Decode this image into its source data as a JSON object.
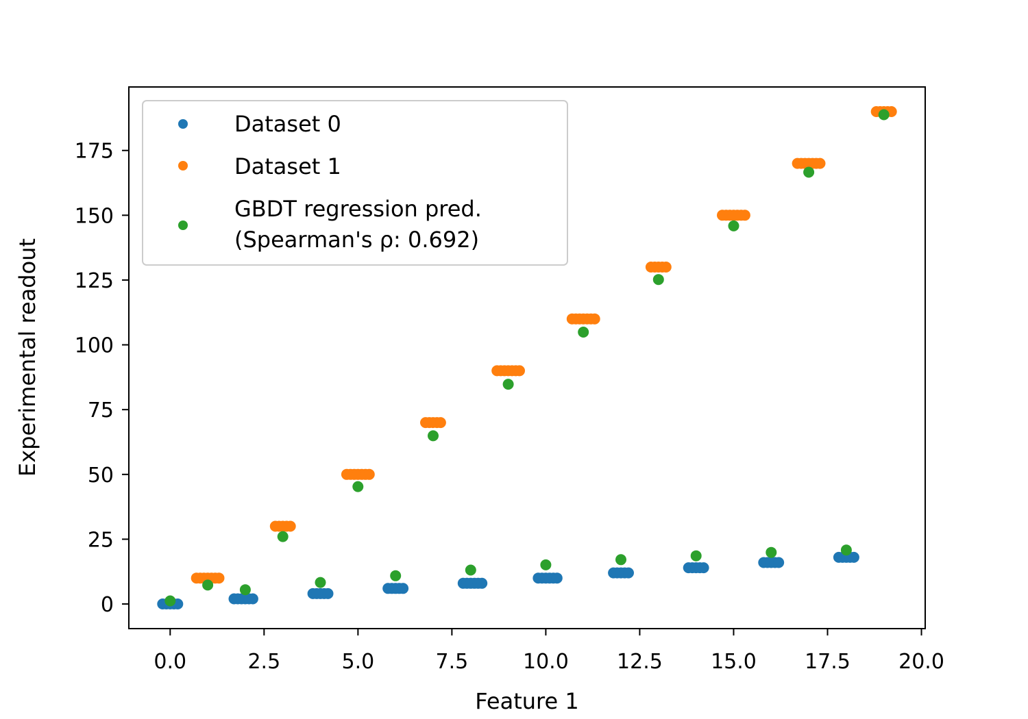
{
  "chart_data": {
    "type": "scatter",
    "title": "",
    "xlabel": "Feature 1",
    "ylabel": "Experimental readout",
    "xlim": [
      -1.1,
      20.1
    ],
    "ylim": [
      -9.5,
      199.5
    ],
    "x_ticks": [
      "0.0",
      "2.5",
      "5.0",
      "7.5",
      "10.0",
      "12.5",
      "15.0",
      "17.5",
      "20.0"
    ],
    "y_ticks": [
      "0",
      "25",
      "50",
      "75",
      "100",
      "125",
      "150",
      "175"
    ],
    "grid": false,
    "legend_position": "top-left",
    "series": [
      {
        "name": "Dataset 0",
        "color": "#1f77b4",
        "points": [
          [
            -0.2,
            0
          ],
          [
            -0.1,
            0
          ],
          [
            0.0,
            0
          ],
          [
            0.1,
            0
          ],
          [
            0.2,
            0
          ],
          [
            1.7,
            2
          ],
          [
            1.8,
            2
          ],
          [
            1.9,
            2
          ],
          [
            2.0,
            2
          ],
          [
            2.1,
            2
          ],
          [
            2.2,
            2
          ],
          [
            3.8,
            4
          ],
          [
            3.9,
            4
          ],
          [
            4.0,
            4
          ],
          [
            4.1,
            4
          ],
          [
            4.2,
            4
          ],
          [
            5.8,
            6
          ],
          [
            5.9,
            6
          ],
          [
            6.0,
            6
          ],
          [
            6.1,
            6
          ],
          [
            6.2,
            6
          ],
          [
            7.8,
            8
          ],
          [
            7.9,
            8
          ],
          [
            8.0,
            8
          ],
          [
            8.1,
            8
          ],
          [
            8.2,
            8
          ],
          [
            8.3,
            8
          ],
          [
            9.8,
            10
          ],
          [
            9.9,
            10
          ],
          [
            10.0,
            10
          ],
          [
            10.1,
            10
          ],
          [
            10.2,
            10
          ],
          [
            10.3,
            10
          ],
          [
            11.8,
            12
          ],
          [
            11.9,
            12
          ],
          [
            12.0,
            12
          ],
          [
            12.1,
            12
          ],
          [
            12.2,
            12
          ],
          [
            13.8,
            14
          ],
          [
            13.9,
            14
          ],
          [
            14.0,
            14
          ],
          [
            14.1,
            14
          ],
          [
            14.2,
            14
          ],
          [
            15.8,
            16
          ],
          [
            15.9,
            16
          ],
          [
            16.0,
            16
          ],
          [
            16.1,
            16
          ],
          [
            16.2,
            16
          ],
          [
            17.8,
            18
          ],
          [
            17.9,
            18
          ],
          [
            18.0,
            18
          ],
          [
            18.1,
            18
          ],
          [
            18.2,
            18
          ]
        ]
      },
      {
        "name": "Dataset 1",
        "color": "#ff7f0e",
        "points": [
          [
            0.7,
            10
          ],
          [
            0.8,
            10
          ],
          [
            0.9,
            10
          ],
          [
            1.0,
            10
          ],
          [
            1.1,
            10
          ],
          [
            1.2,
            10
          ],
          [
            1.3,
            10
          ],
          [
            2.8,
            30
          ],
          [
            2.9,
            30
          ],
          [
            3.0,
            30
          ],
          [
            3.1,
            30
          ],
          [
            3.2,
            30
          ],
          [
            4.7,
            50
          ],
          [
            4.8,
            50
          ],
          [
            4.9,
            50
          ],
          [
            5.0,
            50
          ],
          [
            5.1,
            50
          ],
          [
            5.2,
            50
          ],
          [
            5.3,
            50
          ],
          [
            6.8,
            70
          ],
          [
            6.9,
            70
          ],
          [
            7.0,
            70
          ],
          [
            7.1,
            70
          ],
          [
            7.2,
            70
          ],
          [
            8.7,
            90
          ],
          [
            8.8,
            90
          ],
          [
            8.9,
            90
          ],
          [
            9.0,
            90
          ],
          [
            9.1,
            90
          ],
          [
            9.2,
            90
          ],
          [
            9.3,
            90
          ],
          [
            10.7,
            110
          ],
          [
            10.8,
            110
          ],
          [
            10.9,
            110
          ],
          [
            11.0,
            110
          ],
          [
            11.1,
            110
          ],
          [
            11.2,
            110
          ],
          [
            11.3,
            110
          ],
          [
            12.8,
            130
          ],
          [
            12.9,
            130
          ],
          [
            13.0,
            130
          ],
          [
            13.1,
            130
          ],
          [
            13.2,
            130
          ],
          [
            14.7,
            150
          ],
          [
            14.8,
            150
          ],
          [
            14.9,
            150
          ],
          [
            15.0,
            150
          ],
          [
            15.1,
            150
          ],
          [
            15.2,
            150
          ],
          [
            15.3,
            150
          ],
          [
            16.7,
            170
          ],
          [
            16.8,
            170
          ],
          [
            16.9,
            170
          ],
          [
            17.0,
            170
          ],
          [
            17.1,
            170
          ],
          [
            17.2,
            170
          ],
          [
            17.3,
            170
          ],
          [
            18.8,
            190
          ],
          [
            18.9,
            190
          ],
          [
            19.0,
            190
          ],
          [
            19.1,
            190
          ],
          [
            19.2,
            190
          ]
        ]
      },
      {
        "name": "GBDT regression pred.\n(Spearman's ρ: 0.692)",
        "color": "#2ca02c",
        "points": [
          [
            0,
            1.2
          ],
          [
            1,
            7.3
          ],
          [
            2,
            5.5
          ],
          [
            3,
            26
          ],
          [
            4,
            8.3
          ],
          [
            5,
            45.3
          ],
          [
            6,
            10.9
          ],
          [
            7,
            64.9
          ],
          [
            8,
            13.1
          ],
          [
            9,
            84.8
          ],
          [
            10,
            15.1
          ],
          [
            11,
            104.9
          ],
          [
            12,
            17.1
          ],
          [
            13,
            125.2
          ],
          [
            14,
            18.6
          ],
          [
            15,
            145.9
          ],
          [
            16,
            19.9
          ],
          [
            17,
            166.6
          ],
          [
            18,
            20.8
          ],
          [
            19,
            188.8
          ]
        ]
      }
    ]
  }
}
